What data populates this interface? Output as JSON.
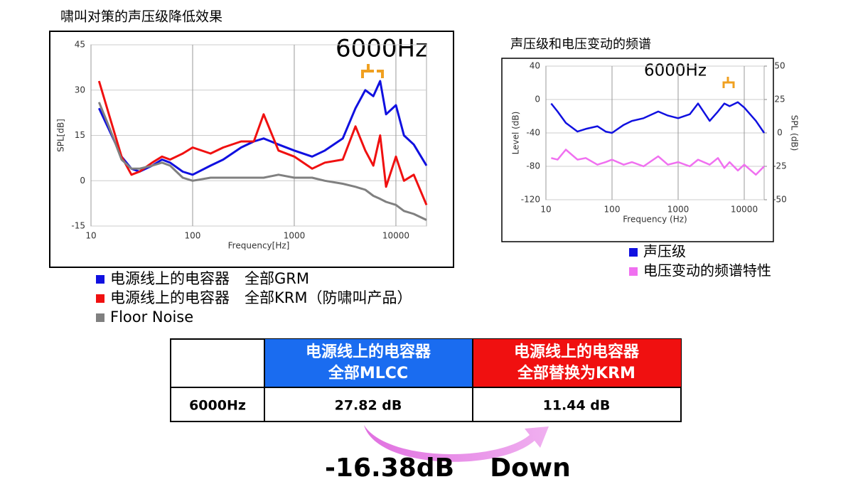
{
  "chart_data": [
    {
      "type": "line",
      "title": "啸叫对策的声压级降低效果",
      "x_label": "Frequency[Hz]",
      "y_label": "SPL[dB]",
      "annotation": "6000Hz",
      "x_scale": "log",
      "grid": true,
      "xlim": [
        10,
        20000
      ],
      "xticks": [
        10,
        100,
        1000,
        10000
      ],
      "ylim": [
        -15,
        45
      ],
      "yticks": [
        -15,
        0,
        15,
        30,
        45
      ],
      "x": [
        12,
        15,
        20,
        25,
        30,
        40,
        50,
        60,
        80,
        100,
        150,
        200,
        300,
        400,
        500,
        700,
        1000,
        1500,
        2000,
        3000,
        4000,
        5000,
        6000,
        7000,
        8000,
        10000,
        12000,
        15000,
        20000
      ],
      "series": [
        {
          "name": "电源线上的电容器　全部GRM",
          "color": "#1010e0",
          "values": [
            24,
            17,
            8,
            4,
            3,
            5,
            7,
            6,
            3,
            2,
            5,
            7,
            11,
            13,
            14,
            12,
            10,
            8,
            10,
            14,
            24,
            30,
            28,
            33,
            22,
            25,
            15,
            12,
            5
          ]
        },
        {
          "name": "电源线上的电容器　全部KRM（防啸叫产品）",
          "color": "#f01010",
          "values": [
            33,
            22,
            8,
            2,
            3,
            6,
            8,
            7,
            9,
            11,
            9,
            11,
            13,
            13,
            22,
            10,
            8,
            4,
            6,
            7,
            18,
            10,
            5,
            15,
            -2,
            8,
            0,
            2,
            -8
          ]
        },
        {
          "name": "Floor Noise",
          "color": "#808080",
          "values": [
            26,
            18,
            7,
            4,
            4,
            5,
            6,
            5,
            1,
            0,
            1,
            1,
            1,
            1,
            1,
            2,
            1,
            1,
            0,
            -1,
            -2,
            -3,
            -5,
            -6,
            -7,
            -8,
            -10,
            -11,
            -13
          ]
        }
      ]
    },
    {
      "type": "line",
      "title": "声压级和电压变动的频谱",
      "x_label": "Frequency (Hz)",
      "y_label": "Level (dB)",
      "y2_label": "SPL (dB)",
      "annotation": "6000Hz",
      "x_scale": "log",
      "grid": true,
      "xlim": [
        10,
        20000
      ],
      "xticks": [
        10,
        100,
        1000,
        10000
      ],
      "ylim": [
        -120,
        40
      ],
      "yticks": [
        -120,
        -80,
        -40,
        0,
        40
      ],
      "y2lim": [
        -50,
        50
      ],
      "y2ticks": [
        -50,
        -25,
        0,
        25,
        50
      ],
      "x": [
        12,
        15,
        20,
        30,
        40,
        60,
        80,
        100,
        150,
        200,
        300,
        500,
        700,
        1000,
        1500,
        2000,
        3000,
        4000,
        5000,
        6000,
        8000,
        10000,
        15000,
        20000
      ],
      "series": [
        {
          "name": "声压级",
          "color": "#1010e0",
          "axis": "y2",
          "values": [
            22,
            16,
            7.5,
            1,
            3,
            5,
            1,
            0,
            6,
            9,
            11,
            16,
            13,
            11,
            14,
            22,
            9,
            16,
            22,
            20,
            23,
            19,
            9,
            0
          ]
        },
        {
          "name": "电压变动的频谱特性",
          "color": "#f070f0",
          "values": [
            -70,
            -72,
            -60,
            -72,
            -70,
            -78,
            -75,
            -72,
            -78,
            -75,
            -80,
            -68,
            -78,
            -75,
            -80,
            -72,
            -78,
            -70,
            -82,
            -75,
            -85,
            -78,
            -90,
            -80
          ]
        }
      ]
    }
  ],
  "table": {
    "header": [
      "电源线上的电容器",
      "全部MLCC",
      "电源线上的电容器",
      "全部替换为KRM"
    ],
    "row": [
      "6000Hz",
      "27.82 dB",
      "11.44 dB"
    ]
  },
  "result": [
    "-16.38dB",
    "Down"
  ]
}
